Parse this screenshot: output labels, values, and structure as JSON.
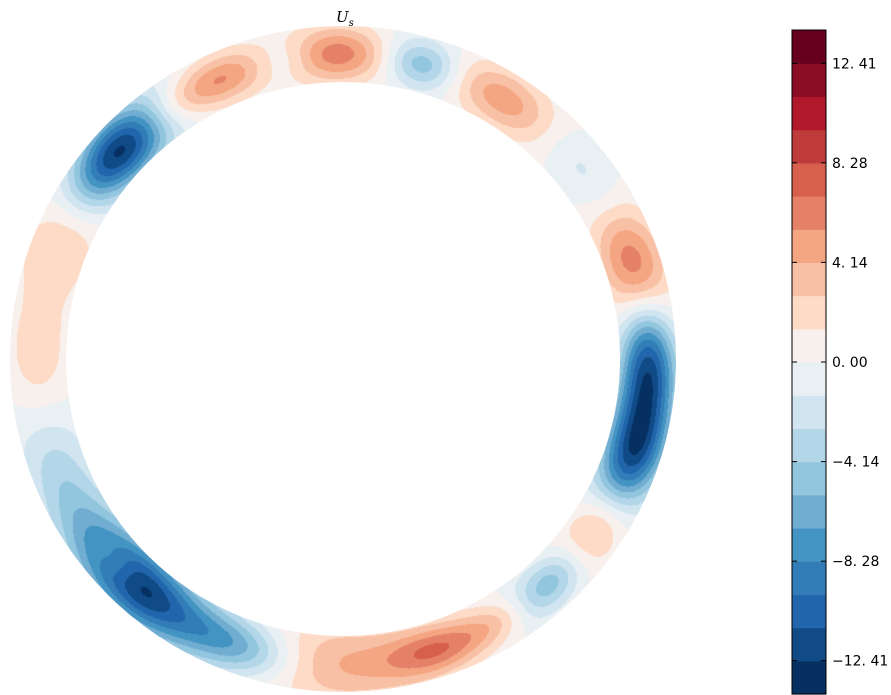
{
  "chart_data": {
    "type": "heatmap",
    "title": "U",
    "title_subscript": "s",
    "xlabel": "",
    "ylabel": "",
    "geometry": "annulus",
    "colormap": {
      "name": "RdBu_r",
      "range": [
        -13.8,
        13.8
      ],
      "levels": 20,
      "colors": [
        "#053061",
        "#104a87",
        "#2166ac",
        "#327cb7",
        "#4393c3",
        "#71add1",
        "#92c5de",
        "#b3d6e8",
        "#d1e5f0",
        "#e9f0f4",
        "#f7f0ec",
        "#fddbc7",
        "#f8c0a4",
        "#f4a582",
        "#e58169",
        "#d6604d",
        "#bf3a3b",
        "#b2182b",
        "#8e0d26",
        "#67001f"
      ]
    },
    "colorbar": {
      "ticks": [
        12.41,
        8.28,
        4.14,
        0.0,
        -4.14,
        -8.28,
        -12.41
      ],
      "tick_labels": [
        "12. 41",
        "8. 28",
        "4. 14",
        "0. 00",
        "−4. 14",
        "−8. 28",
        "−12. 41"
      ]
    },
    "blobs": [
      {
        "angle_deg": 0,
        "value": -11.5,
        "ang_width_deg": 9,
        "rad_width": 0.35
      },
      {
        "angle_deg": -19,
        "value": -12.0,
        "ang_width_deg": 9,
        "rad_width": 0.38
      },
      {
        "angle_deg": -33,
        "value": 6.5,
        "ang_width_deg": 8,
        "rad_width": 0.35
      },
      {
        "angle_deg": -48,
        "value": -7.0,
        "ang_width_deg": 7,
        "rad_width": 0.3
      },
      {
        "angle_deg": -58,
        "value": 3.5,
        "ang_width_deg": 6,
        "rad_width": 0.25
      },
      {
        "angle_deg": -72,
        "value": 5.5,
        "ang_width_deg": 7,
        "rad_width": 0.3
      },
      {
        "angle_deg": -90,
        "value": 4.2,
        "ang_width_deg": 14,
        "rad_width": 0.5
      },
      {
        "angle_deg": -110,
        "value": -6.5,
        "ang_width_deg": 8,
        "rad_width": 0.35
      },
      {
        "angle_deg": -133,
        "value": -13.0,
        "ang_width_deg": 11,
        "rad_width": 0.45
      },
      {
        "angle_deg": -138,
        "value": 3.0,
        "ang_width_deg": 4,
        "rad_width": 0.2
      },
      {
        "angle_deg": -158,
        "value": -3.0,
        "ang_width_deg": 9,
        "rad_width": 0.45
      },
      {
        "angle_deg": -180,
        "value": 2.5,
        "ang_width_deg": 8,
        "rad_width": 0.4
      },
      {
        "angle_deg": 155,
        "value": 3.2,
        "ang_width_deg": 9,
        "rad_width": 0.45
      },
      {
        "angle_deg": 137,
        "value": -13.2,
        "ang_width_deg": 9,
        "rad_width": 0.4
      },
      {
        "angle_deg": 124,
        "value": 4.0,
        "ang_width_deg": 6,
        "rad_width": 0.3
      },
      {
        "angle_deg": 113,
        "value": 5.0,
        "ang_width_deg": 6,
        "rad_width": 0.3
      },
      {
        "angle_deg": 101,
        "value": -2.0,
        "ang_width_deg": 4,
        "rad_width": 0.25
      },
      {
        "angle_deg": 91,
        "value": 6.5,
        "ang_width_deg": 7,
        "rad_width": 0.35
      },
      {
        "angle_deg": 75,
        "value": -5.5,
        "ang_width_deg": 5,
        "rad_width": 0.3
      },
      {
        "angle_deg": 58,
        "value": 5.0,
        "ang_width_deg": 8,
        "rad_width": 0.35
      },
      {
        "angle_deg": 38,
        "value": -2.0,
        "ang_width_deg": 10,
        "rad_width": 0.3
      },
      {
        "angle_deg": 17,
        "value": 7.8,
        "ang_width_deg": 9,
        "rad_width": 0.4
      }
    ]
  }
}
